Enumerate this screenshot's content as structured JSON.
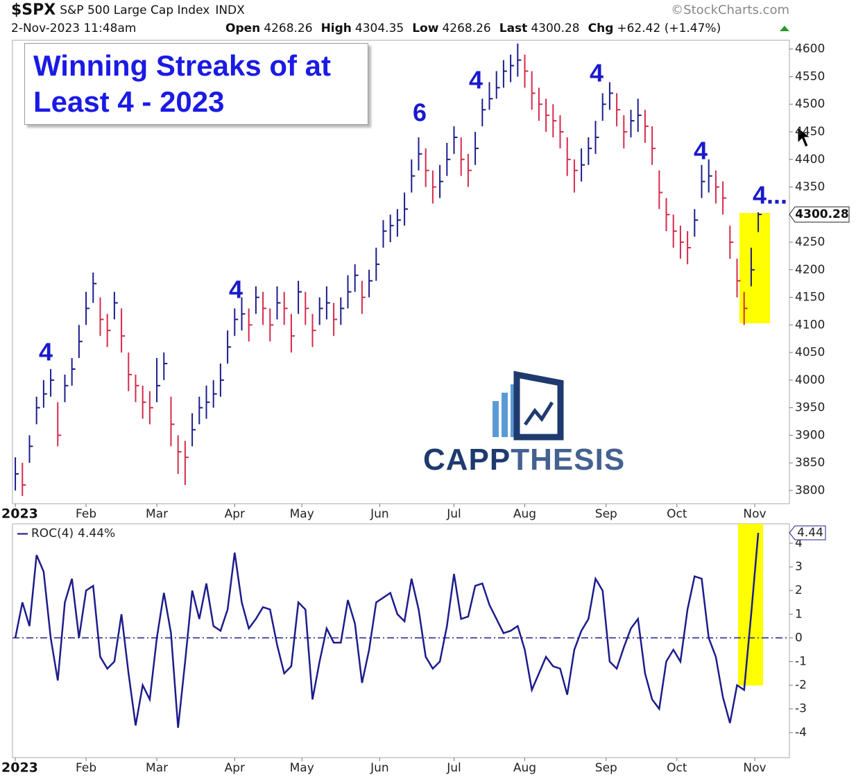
{
  "header": {
    "symbol": "$SPX",
    "name": "S&P 500 Large Cap Index",
    "exchange": "INDX",
    "source": "©StockCharts.com",
    "date": "2-Nov-2023 11:48am",
    "quote": [
      {
        "label": "Open",
        "value": 4268.26
      },
      {
        "label": "High",
        "value": 4304.35
      },
      {
        "label": "Low",
        "value": 4268.26
      },
      {
        "label": "Last",
        "value": 4300.28
      },
      {
        "label": "Chg",
        "value": "+62.42 (+1.47%)"
      }
    ]
  },
  "chart_data": [
    {
      "type": "ohlc",
      "title": "Winning Streaks of at Least 4 - 2023",
      "watermark": [
        "CAPP",
        "THESIS"
      ],
      "annotations": [
        "4",
        "4",
        "6",
        "4",
        "4",
        "4",
        "4..."
      ],
      "up_color": "#1c1c8c",
      "down_color": "#d42a4a",
      "high": [
        3860,
        3850,
        3900,
        3970,
        4000,
        4020,
        3960,
        4010,
        4040,
        4100,
        4160,
        4195,
        4150,
        4120,
        4160,
        4130,
        4050,
        4010,
        3990,
        3980,
        4040,
        4050,
        3970,
        3900,
        3890,
        3940,
        3970,
        3990,
        4000,
        4030,
        4090,
        4130,
        4150,
        4130,
        4170,
        4160,
        4130,
        4170,
        4160,
        4120,
        4180,
        4160,
        4120,
        4150,
        4170,
        4140,
        4150,
        4190,
        4210,
        4180,
        4200,
        4240,
        4290,
        4300,
        4310,
        4340,
        4400,
        4440,
        4420,
        4380,
        4390,
        4430,
        4460,
        4440,
        4410,
        4450,
        4510,
        4540,
        4560,
        4580,
        4590,
        4610,
        4590,
        4560,
        4530,
        4510,
        4500,
        4480,
        4440,
        4400,
        4420,
        4440,
        4470,
        4520,
        4540,
        4520,
        4480,
        4490,
        4510,
        4490,
        4460,
        4380,
        4330,
        4300,
        4280,
        4270,
        4310,
        4390,
        4400,
        4380,
        4360,
        4280,
        4220,
        4160,
        4240,
        4304.35
      ],
      "low": [
        3800,
        3790,
        3850,
        3920,
        3950,
        3970,
        3880,
        3960,
        3990,
        4040,
        4100,
        4140,
        4080,
        4060,
        4110,
        4050,
        3980,
        3960,
        3930,
        3920,
        3960,
        4000,
        3880,
        3830,
        3810,
        3880,
        3920,
        3930,
        3950,
        3970,
        4030,
        4080,
        4090,
        4070,
        4120,
        4100,
        4070,
        4110,
        4100,
        4050,
        4120,
        4100,
        4060,
        4100,
        4110,
        4080,
        4100,
        4130,
        4160,
        4120,
        4150,
        4180,
        4240,
        4250,
        4260,
        4280,
        4340,
        4380,
        4350,
        4320,
        4330,
        4370,
        4410,
        4370,
        4350,
        4390,
        4460,
        4490,
        4510,
        4530,
        4540,
        4550,
        4530,
        4490,
        4470,
        4450,
        4440,
        4420,
        4370,
        4340,
        4360,
        4390,
        4410,
        4470,
        4490,
        4460,
        4420,
        4440,
        4450,
        4430,
        4390,
        4310,
        4270,
        4240,
        4220,
        4210,
        4260,
        4330,
        4340,
        4320,
        4300,
        4220,
        4150,
        4100,
        4170,
        4268.26
      ],
      "close": [
        3830,
        3810,
        3880,
        3950,
        3975,
        4000,
        3900,
        3990,
        4020,
        4070,
        4130,
        4175,
        4110,
        4090,
        4140,
        4080,
        4010,
        3990,
        3960,
        3950,
        3990,
        4030,
        3920,
        3870,
        3860,
        3910,
        3950,
        3960,
        3975,
        4000,
        4060,
        4110,
        4120,
        4100,
        4150,
        4130,
        4100,
        4140,
        4130,
        4080,
        4160,
        4130,
        4090,
        4130,
        4140,
        4110,
        4130,
        4160,
        4190,
        4150,
        4180,
        4210,
        4270,
        4280,
        4290,
        4310,
        4370,
        4410,
        4380,
        4350,
        4360,
        4400,
        4440,
        4400,
        4380,
        4420,
        4490,
        4510,
        4530,
        4560,
        4570,
        4580,
        4560,
        4520,
        4500,
        4480,
        4470,
        4450,
        4400,
        4380,
        4390,
        4420,
        4440,
        4500,
        4520,
        4490,
        4450,
        4470,
        4480,
        4460,
        4420,
        4340,
        4300,
        4270,
        4250,
        4240,
        4290,
        4360,
        4370,
        4350,
        4330,
        4250,
        4180,
        4130,
        4200,
        4300.28
      ],
      "xlim": [
        -0.4,
        109.4
      ],
      "xticks": [
        {
          "value": 0,
          "label": "2023"
        },
        {
          "value": 10,
          "label": "Feb"
        },
        {
          "value": 20,
          "label": "Mar"
        },
        {
          "value": 31,
          "label": "Apr"
        },
        {
          "value": 40.5,
          "label": "May"
        },
        {
          "value": 51.5,
          "label": "Jun"
        },
        {
          "value": 62,
          "label": "Jul"
        },
        {
          "value": 72,
          "label": "Aug"
        },
        {
          "value": 83.5,
          "label": "Sep"
        },
        {
          "value": 93.5,
          "label": "Oct"
        },
        {
          "value": 104.5,
          "label": "Nov"
        }
      ],
      "ylim": [
        3776,
        4616
      ],
      "yticks": [
        3800,
        3850,
        3900,
        3950,
        4000,
        4050,
        4100,
        4150,
        4200,
        4250,
        4300,
        4350,
        4400,
        4450,
        4500,
        4550,
        4600
      ]
    },
    {
      "type": "line",
      "reference_line": 0,
      "series": [
        {
          "name": "ROC(4)",
          "color": "#1c1c8c",
          "last_label": "4.44%",
          "values": [
            0,
            1.5,
            0.5,
            3.5,
            2.8,
            0,
            -1.8,
            1.5,
            2.5,
            0,
            2,
            2.2,
            -0.8,
            -1.3,
            -1,
            1,
            -1.5,
            -3.7,
            -2,
            -2.6,
            0,
            1.9,
            0.2,
            -3.8,
            -1,
            2,
            0.8,
            2.3,
            0.5,
            0.3,
            1.2,
            3.6,
            1.5,
            0.4,
            0.8,
            1.3,
            1.2,
            -0.3,
            -1.5,
            -1.2,
            1.5,
            1.2,
            -2.6,
            -1,
            0.4,
            -0.2,
            -0.2,
            1.6,
            0.6,
            -1.9,
            -0.5,
            1.5,
            1.7,
            1.9,
            1,
            0.7,
            2.5,
            1.2,
            -0.8,
            -1.3,
            -1,
            0.5,
            2.7,
            0.8,
            0.9,
            2.2,
            2.3,
            1.4,
            0.8,
            0.2,
            0.3,
            0.5,
            -0.5,
            -2.2,
            -1.5,
            -0.8,
            -1.2,
            -1.3,
            -2.4,
            -0.5,
            0.3,
            0.8,
            2.5,
            2,
            -1,
            -1.3,
            -0.4,
            0.4,
            0.8,
            -1.5,
            -2.6,
            -3,
            -1,
            -0.5,
            -1,
            1.2,
            2.6,
            2.5,
            0,
            -0.8,
            -2.5,
            -3.6,
            -2,
            -2.2,
            1,
            4.44
          ]
        }
      ],
      "xlim": [
        -0.4,
        109.4
      ],
      "xticks": [
        {
          "value": 0,
          "label": "2023"
        },
        {
          "value": 10,
          "label": "Feb"
        },
        {
          "value": 20,
          "label": "Mar"
        },
        {
          "value": 31,
          "label": "Apr"
        },
        {
          "value": 40.5,
          "label": "May"
        },
        {
          "value": 51.5,
          "label": "Jun"
        },
        {
          "value": 62,
          "label": "Jul"
        },
        {
          "value": 72,
          "label": "Aug"
        },
        {
          "value": 83.5,
          "label": "Sep"
        },
        {
          "value": 93.5,
          "label": "Oct"
        },
        {
          "value": 104.5,
          "label": "Nov"
        }
      ],
      "ylim": [
        -5.06,
        4.82
      ],
      "yticks": [
        -4,
        -3,
        -2,
        -1,
        0,
        1,
        2,
        3,
        4
      ]
    }
  ]
}
